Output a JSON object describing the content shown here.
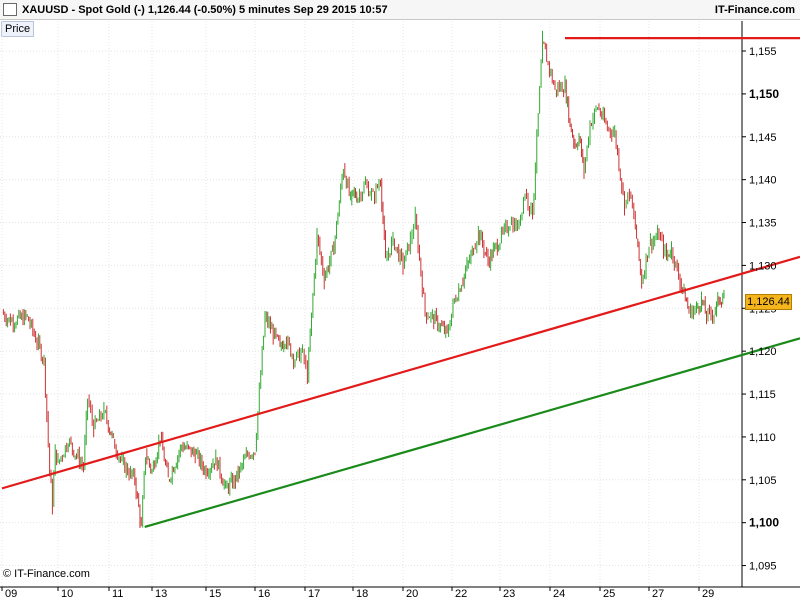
{
  "header": {
    "title": "XAUUSD - Spot Gold (-)    1,126.44 (-0.50%)    5 minutes   Sep 29 2015 10:57",
    "brand": "IT-Finance.com"
  },
  "pane": {
    "label": "Price"
  },
  "footer": {
    "copyright": "© IT-Finance.com"
  },
  "colors": {
    "up": "#33aa33",
    "down": "#cc3333",
    "resistance": "#e31a1a",
    "support": "#1a8a1a",
    "tag": "#f4b41c"
  },
  "chart_data": {
    "type": "line",
    "instrument": "XAUUSD - Spot Gold",
    "timeframe": "5 minutes",
    "last_price_label": "1,126.44",
    "ylim": [
      1092.5,
      1158.5
    ],
    "xlim": [
      0,
      16.35
    ],
    "y_ticks": [
      "1,095",
      "1,100",
      "1,105",
      "1,110",
      "1,115",
      "1,120",
      "1,125",
      "1,130",
      "1,135",
      "1,140",
      "1,145",
      "1,150",
      "1,155"
    ],
    "y_ticks_bold": [
      "1,100",
      "1,150"
    ],
    "x_ticks": [
      {
        "label": "09",
        "i": 0.0
      },
      {
        "label": "10",
        "i": 1.0
      },
      {
        "label": "11",
        "i": 2.0
      },
      {
        "label": "13",
        "i": 3.0
      },
      {
        "label": "15",
        "i": 4.0
      },
      {
        "label": "16",
        "i": 5.0
      },
      {
        "label": "17",
        "i": 6.0
      },
      {
        "label": "18",
        "i": 7.0
      },
      {
        "label": "20",
        "i": 8.0
      },
      {
        "label": "22",
        "i": 9.0
      },
      {
        "label": "23",
        "i": 10.0
      },
      {
        "label": "24",
        "i": 11.0
      },
      {
        "label": "25",
        "i": 12.0
      },
      {
        "label": "27",
        "i": 13.0
      },
      {
        "label": "29",
        "i": 14.0
      }
    ],
    "series": [
      {
        "x": [
          0.0,
          0.15,
          0.45,
          0.75,
          0.85,
          0.9,
          0.95,
          1.0,
          1.2,
          1.5,
          1.58,
          1.7,
          1.9,
          2.1,
          2.3,
          2.6,
          2.75,
          2.85,
          3.0,
          3.15,
          3.3,
          3.55,
          3.8,
          4.0,
          4.2,
          4.4,
          4.6,
          4.85,
          5.0,
          5.2,
          5.5,
          5.6,
          5.8,
          5.95,
          6.05,
          6.25,
          6.4,
          6.6,
          6.8,
          6.95,
          7.0,
          7.1,
          7.25,
          7.4,
          7.55,
          7.65,
          7.8,
          8.0,
          8.15,
          8.25,
          8.45,
          8.6,
          8.9,
          9.05,
          9.2,
          9.45,
          9.55,
          9.75,
          10.0,
          10.2,
          10.35,
          10.5,
          10.65,
          10.85,
          11.1,
          11.3,
          11.4,
          11.5,
          11.58,
          11.68,
          11.8,
          11.95,
          12.15,
          12.3,
          12.5,
          12.6,
          12.72,
          12.85,
          13.0,
          13.2,
          13.35,
          13.45,
          13.62,
          13.7,
          13.8,
          13.95,
          14.05,
          14.15,
          14.3,
          14.4,
          14.5
        ],
        "y": [
          1124.5,
          1123.5,
          1124.0,
          1119.0,
          1106.0,
          1102.0,
          1108.5,
          1107.0,
          1109.5,
          1106.5,
          1114.5,
          1111.0,
          1113.0,
          1109.5,
          1107.0,
          1105.0,
          1099.5,
          1108.0,
          1106.0,
          1110.0,
          1105.0,
          1109.0,
          1108.0,
          1106.0,
          1107.5,
          1104.0,
          1105.0,
          1108.0,
          1108.5,
          1124.0,
          1120.5,
          1121.5,
          1119.0,
          1120.0,
          1117.0,
          1133.5,
          1128.5,
          1132.0,
          1141.5,
          1137.5,
          1138.5,
          1138.0,
          1139.5,
          1138.0,
          1140.0,
          1130.5,
          1133.0,
          1130.0,
          1133.0,
          1135.5,
          1124.5,
          1124.0,
          1122.0,
          1126.0,
          1128.0,
          1132.0,
          1134.0,
          1130.5,
          1133.0,
          1135.0,
          1134.5,
          1138.5,
          1136.0,
          1156.0,
          1150.5,
          1151.0,
          1146.5,
          1144.0,
          1145.0,
          1141.0,
          1146.5,
          1148.5,
          1146.0,
          1145.5,
          1137.0,
          1138.5,
          1134.5,
          1128.0,
          1132.5,
          1133.5,
          1131.0,
          1132.0,
          1128.0,
          1127.0,
          1124.5,
          1125.0,
          1126.0,
          1124.0,
          1124.5,
          1126.0,
          1126.44
        ]
      }
    ],
    "trendlines": [
      {
        "name": "resistance",
        "color": "#e31a1a",
        "x": [
          0.0,
          16.35
        ],
        "y": [
          1104.0,
          1131.0
        ]
      },
      {
        "name": "support",
        "color": "#1a8a1a",
        "x": [
          2.83,
          16.35
        ],
        "y": [
          1099.5,
          1121.5
        ]
      },
      {
        "name": "top-horizontal",
        "color": "#e31a1a",
        "x": [
          11.3,
          16.35
        ],
        "y": [
          1156.5,
          1156.5
        ]
      }
    ]
  }
}
